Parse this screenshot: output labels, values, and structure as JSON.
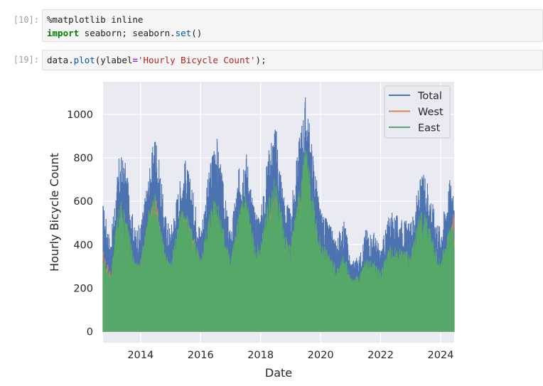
{
  "cells": [
    {
      "prompt": "[10]:",
      "lines": [
        [
          {
            "t": "%matplotlib inline",
            "c": ""
          }
        ],
        [
          {
            "t": "import",
            "c": "kw"
          },
          {
            "t": " seaborn; seaborn.",
            "c": ""
          },
          {
            "t": "set",
            "c": "fn"
          },
          {
            "t": "()",
            "c": ""
          }
        ]
      ]
    },
    {
      "prompt": "[19]:",
      "lines": [
        [
          {
            "t": "data.",
            "c": ""
          },
          {
            "t": "plot",
            "c": "fn"
          },
          {
            "t": "(ylabel",
            "c": ""
          },
          {
            "t": "=",
            "c": "op"
          },
          {
            "t": "'Hourly Bicycle Count'",
            "c": "str"
          },
          {
            "t": ");",
            "c": ""
          }
        ]
      ]
    }
  ],
  "chart_data": {
    "type": "line",
    "xlabel": "Date",
    "ylabel": "Hourly Bicycle Count",
    "xlim": [
      2012.75,
      2024.45
    ],
    "ylim": [
      -50,
      1150
    ],
    "xticks": [
      2014,
      2016,
      2018,
      2020,
      2022,
      2024
    ],
    "yticks": [
      0,
      200,
      400,
      600,
      800,
      1000
    ],
    "grid": true,
    "legend": "top-right",
    "series": [
      {
        "name": "Total",
        "color": "#4c72b0",
        "x": [
          2012.75,
          2013.0,
          2013.3,
          2013.5,
          2013.8,
          2014.0,
          2014.3,
          2014.5,
          2014.8,
          2015.0,
          2015.3,
          2015.5,
          2015.8,
          2016.0,
          2016.3,
          2016.5,
          2016.8,
          2017.0,
          2017.3,
          2017.5,
          2017.8,
          2018.0,
          2018.3,
          2018.5,
          2018.8,
          2019.0,
          2019.3,
          2019.5,
          2019.8,
          2020.0,
          2020.3,
          2020.5,
          2020.8,
          2021.0,
          2021.3,
          2021.5,
          2021.8,
          2022.0,
          2022.3,
          2022.5,
          2022.8,
          2023.0,
          2023.3,
          2023.5,
          2023.8,
          2024.0,
          2024.3,
          2024.45
        ],
        "peak": [
          600,
          420,
          830,
          780,
          480,
          500,
          760,
          940,
          560,
          480,
          700,
          800,
          620,
          480,
          760,
          950,
          640,
          460,
          780,
          870,
          560,
          560,
          880,
          960,
          620,
          560,
          920,
          1100,
          780,
          560,
          500,
          430,
          520,
          330,
          350,
          480,
          460,
          380,
          560,
          540,
          520,
          500,
          700,
          750,
          560,
          480,
          710,
          710
        ],
        "base": [
          180,
          170,
          220,
          250,
          160,
          170,
          260,
          300,
          190,
          160,
          240,
          280,
          200,
          170,
          250,
          300,
          200,
          170,
          250,
          290,
          190,
          190,
          300,
          320,
          210,
          190,
          320,
          360,
          260,
          180,
          160,
          140,
          150,
          140,
          150,
          160,
          150,
          150,
          200,
          210,
          180,
          170,
          230,
          240,
          180,
          160,
          240,
          240
        ]
      },
      {
        "name": "West",
        "color": "#dd8452",
        "x": [
          2012.75,
          2013.0,
          2013.3,
          2013.5,
          2013.8,
          2014.0,
          2014.3,
          2014.5,
          2014.8,
          2015.0,
          2015.3,
          2015.5,
          2015.8,
          2016.0,
          2016.3,
          2016.5,
          2016.8,
          2017.0,
          2017.3,
          2017.5,
          2017.8,
          2018.0,
          2018.3,
          2018.5,
          2018.8,
          2019.0,
          2019.3,
          2019.5,
          2019.8,
          2020.0,
          2020.3,
          2020.5,
          2020.8,
          2021.0,
          2021.3,
          2021.5,
          2021.8,
          2022.0,
          2022.3,
          2022.5,
          2022.8,
          2023.0,
          2023.3,
          2023.5,
          2023.8,
          2024.0,
          2024.3,
          2024.45
        ],
        "peak": [
          380,
          280,
          470,
          420,
          300,
          300,
          540,
          640,
          360,
          300,
          440,
          560,
          400,
          300,
          470,
          560,
          400,
          300,
          470,
          540,
          360,
          350,
          560,
          640,
          400,
          340,
          560,
          740,
          480,
          320,
          300,
          250,
          300,
          200,
          210,
          290,
          270,
          230,
          340,
          330,
          320,
          300,
          440,
          470,
          340,
          290,
          440,
          580
        ],
        "base": [
          120,
          110,
          140,
          160,
          100,
          110,
          160,
          190,
          120,
          100,
          150,
          180,
          130,
          110,
          160,
          190,
          130,
          110,
          160,
          180,
          120,
          120,
          190,
          200,
          130,
          120,
          200,
          230,
          160,
          110,
          100,
          90,
          95,
          90,
          95,
          100,
          95,
          95,
          130,
          130,
          110,
          105,
          145,
          150,
          110,
          100,
          150,
          150
        ]
      },
      {
        "name": "East",
        "color": "#55a868",
        "x": [
          2012.75,
          2013.0,
          2013.3,
          2013.5,
          2013.8,
          2014.0,
          2014.3,
          2014.5,
          2014.8,
          2015.0,
          2015.3,
          2015.5,
          2015.8,
          2016.0,
          2016.3,
          2016.5,
          2016.8,
          2017.0,
          2017.3,
          2017.5,
          2017.8,
          2018.0,
          2018.3,
          2018.5,
          2018.8,
          2019.0,
          2019.3,
          2019.5,
          2019.8,
          2020.0,
          2020.3,
          2020.5,
          2020.8,
          2021.0,
          2021.3,
          2021.5,
          2021.8,
          2022.0,
          2022.3,
          2022.5,
          2022.8,
          2023.0,
          2023.3,
          2023.5,
          2023.8,
          2024.0,
          2024.3,
          2024.45
        ],
        "peak": [
          330,
          260,
          620,
          560,
          320,
          330,
          600,
          640,
          380,
          320,
          560,
          570,
          440,
          330,
          560,
          660,
          460,
          330,
          580,
          660,
          400,
          400,
          650,
          720,
          460,
          400,
          700,
          860,
          600,
          420,
          360,
          300,
          360,
          250,
          260,
          340,
          320,
          280,
          400,
          390,
          380,
          360,
          560,
          550,
          400,
          330,
          500,
          500
        ],
        "base": [
          200,
          190,
          230,
          240,
          180,
          190,
          250,
          280,
          200,
          180,
          240,
          270,
          210,
          190,
          250,
          280,
          210,
          190,
          250,
          280,
          200,
          200,
          290,
          300,
          210,
          200,
          310,
          340,
          250,
          190,
          170,
          150,
          160,
          150,
          160,
          170,
          160,
          160,
          200,
          200,
          190,
          180,
          230,
          230,
          190,
          170,
          230,
          230
        ]
      }
    ]
  }
}
